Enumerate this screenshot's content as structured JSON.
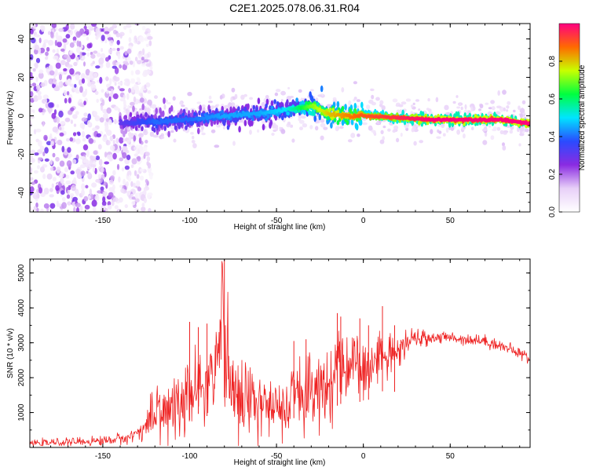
{
  "title": "C2E1.2025.078.06.31.R04",
  "chart_data": [
    {
      "type": "heatmap",
      "xlabel": "Height of straight line (km)",
      "ylabel": "Frequency (Hz)",
      "xlim": [
        -192,
        96
      ],
      "ylim": [
        -50,
        48
      ],
      "xticks": [
        -150,
        -100,
        -50,
        0,
        50
      ],
      "yticks": [
        -40,
        -20,
        0,
        20,
        40
      ],
      "colorbar": {
        "label": "Normalized spectral amplitude",
        "range": [
          0,
          1
        ],
        "ticks": [
          0.0,
          0.2,
          0.4,
          0.6,
          0.8
        ],
        "colormap": [
          "#ffffff",
          "#e8d0f8",
          "#8a2be2",
          "#2a4bff",
          "#00e5ff",
          "#00ff40",
          "#c8ff00",
          "#ff6a00",
          "#ff0080"
        ]
      },
      "ridge": {
        "x": [
          -140,
          -120,
          -100,
          -80,
          -60,
          -45,
          -30,
          -20,
          -10,
          0,
          20,
          40,
          60,
          80,
          95
        ],
        "freq": [
          -4,
          -3,
          -2,
          0,
          1,
          3,
          5,
          1,
          0,
          0,
          -1,
          -2,
          -2,
          -2,
          -4
        ],
        "peak_amplitude": [
          0.3,
          0.4,
          0.4,
          0.45,
          0.45,
          0.5,
          0.7,
          0.8,
          0.85,
          0.9,
          0.95,
          1.0,
          1.0,
          1.0,
          1.0
        ]
      },
      "noise_region": {
        "x_range": [
          -192,
          -128
        ],
        "amplitude_range": [
          0.05,
          0.3
        ]
      },
      "grid": false
    },
    {
      "type": "line",
      "color": "#ee2222",
      "xlabel": "Height of straight line (km)",
      "ylabel": "SNR (10 * v/v)",
      "xlim": [
        -192,
        96
      ],
      "ylim": [
        0,
        5400
      ],
      "xticks": [
        -150,
        -100,
        -50,
        0,
        50
      ],
      "yticks": [
        1000,
        2000,
        3000,
        4000,
        5000
      ],
      "series": [
        {
          "x": [
            -192,
            -170,
            -150,
            -135,
            -125,
            -120,
            -110,
            -100,
            -95,
            -90,
            -85,
            -82,
            -81,
            -80,
            -78,
            -70,
            -60,
            -50,
            -45,
            -40,
            -35,
            -30,
            -25,
            -20,
            -15,
            -10,
            -5,
            0,
            5,
            10,
            15,
            20,
            25,
            30,
            40,
            50,
            60,
            70,
            80,
            90,
            96
          ],
          "y": [
            120,
            150,
            190,
            280,
            600,
            900,
            1100,
            1300,
            1600,
            1500,
            1700,
            2900,
            5350,
            2400,
            1800,
            1400,
            1200,
            1100,
            800,
            1400,
            1500,
            1300,
            1400,
            1700,
            2000,
            2200,
            2300,
            2100,
            2400,
            2700,
            2600,
            2700,
            3000,
            3100,
            3150,
            3150,
            3100,
            3050,
            2900,
            2700,
            2550
          ],
          "spikes": [
            [
              -100,
              3600
            ],
            [
              -95,
              3450
            ],
            [
              -90,
              3550
            ],
            [
              -80,
              5400
            ],
            [
              -40,
              3050
            ],
            [
              -33,
              3100
            ],
            [
              -15,
              3850
            ],
            [
              -13,
              3750
            ],
            [
              -2,
              3700
            ],
            [
              3,
              3500
            ],
            [
              11,
              4050
            ],
            [
              18,
              3500
            ]
          ],
          "noise_amplitude": [
            [
              -192,
              60
            ],
            [
              -130,
              120
            ],
            [
              -120,
              500
            ],
            [
              -100,
              700
            ],
            [
              -80,
              900
            ],
            [
              -60,
              700
            ],
            [
              -45,
              500
            ],
            [
              -35,
              900
            ],
            [
              -20,
              900
            ],
            [
              0,
              600
            ],
            [
              20,
              300
            ],
            [
              40,
              120
            ],
            [
              96,
              120
            ]
          ]
        }
      ],
      "grid": false
    }
  ]
}
